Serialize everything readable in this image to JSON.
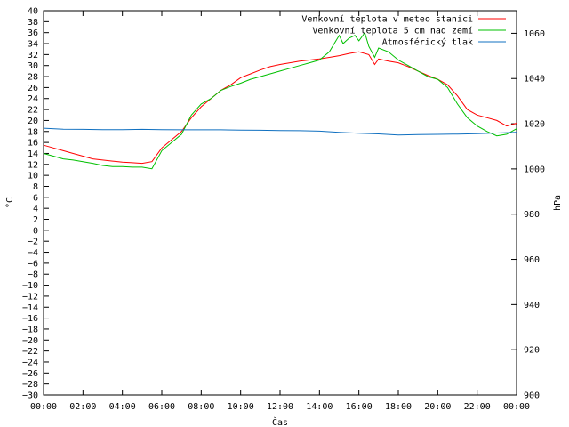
{
  "chart_data": {
    "type": "line",
    "xlabel": "Čas",
    "ylabel": "°C",
    "y2label": "hPa",
    "x_ticks": [
      "00:00",
      "02:00",
      "04:00",
      "06:00",
      "08:00",
      "10:00",
      "12:00",
      "14:00",
      "16:00",
      "18:00",
      "20:00",
      "22:00",
      "00:00"
    ],
    "x_range_hours": [
      0,
      24
    ],
    "ylim": [
      -30,
      40
    ],
    "y_ticks": [
      40,
      38,
      36,
      34,
      32,
      30,
      28,
      26,
      24,
      22,
      20,
      18,
      16,
      14,
      12,
      10,
      8,
      6,
      4,
      2,
      0,
      -2,
      -4,
      -6,
      -8,
      -10,
      -12,
      -14,
      -16,
      -18,
      -20,
      -22,
      -24,
      -26,
      -28,
      -30
    ],
    "y2lim": [
      900,
      1070
    ],
    "y2_ticks": [
      1060,
      1040,
      1020,
      1000,
      980,
      960,
      940,
      920,
      900
    ],
    "grid": false,
    "legend_position": "top-right",
    "series": [
      {
        "name": "Venkovní teplota v meteo stanici",
        "color": "#ff0000",
        "axis": "left",
        "x": [
          0,
          0.5,
          1,
          1.5,
          2,
          2.5,
          3,
          3.5,
          4,
          4.5,
          5,
          5.5,
          6,
          6.5,
          7,
          7.5,
          8,
          8.5,
          9,
          9.5,
          10,
          10.5,
          11,
          11.5,
          12,
          12.5,
          13,
          13.5,
          14,
          14.5,
          15,
          15.5,
          16,
          16.5,
          16.8,
          17,
          17.5,
          18,
          18.5,
          19,
          19.5,
          20,
          20.5,
          21,
          21.5,
          22,
          22.5,
          23,
          23.5,
          24
        ],
        "values": [
          15.5,
          15,
          14.5,
          14,
          13.5,
          13,
          12.8,
          12.6,
          12.4,
          12.3,
          12.2,
          12.5,
          15,
          16.5,
          18,
          20.5,
          22.5,
          24,
          25.5,
          26.5,
          27.8,
          28.5,
          29.2,
          29.8,
          30.2,
          30.5,
          30.8,
          31,
          31.2,
          31.5,
          31.8,
          32.2,
          32.5,
          32,
          30.2,
          31.2,
          30.8,
          30.5,
          29.8,
          29,
          28.2,
          27.5,
          26.5,
          24.5,
          22,
          21,
          20.5,
          20,
          19,
          19.5
        ]
      },
      {
        "name": "Venkovní teplota 5 cm nad zemí",
        "color": "#00c000",
        "axis": "left",
        "x": [
          0,
          0.5,
          1,
          1.5,
          2,
          2.5,
          3,
          3.5,
          4,
          4.5,
          5,
          5.5,
          6,
          6.5,
          7,
          7.5,
          8,
          8.5,
          9,
          9.5,
          10,
          10.5,
          11,
          11.5,
          12,
          12.5,
          13,
          13.5,
          14,
          14.5,
          15,
          15.2,
          15.5,
          15.8,
          16,
          16.3,
          16.5,
          16.8,
          17,
          17.5,
          18,
          18.5,
          19,
          19.5,
          20,
          20.5,
          21,
          21.5,
          22,
          22.5,
          23,
          23.5,
          24
        ],
        "values": [
          14,
          13.5,
          13,
          12.8,
          12.5,
          12.2,
          11.8,
          11.6,
          11.6,
          11.5,
          11.5,
          11.2,
          14.5,
          16,
          17.5,
          21,
          23,
          24,
          25.5,
          26.2,
          26.8,
          27.5,
          28,
          28.5,
          29,
          29.5,
          30,
          30.5,
          31,
          32.5,
          35.5,
          34,
          35,
          35.5,
          34.5,
          36,
          33.5,
          31.5,
          33.2,
          32.5,
          31,
          30,
          29,
          28,
          27.5,
          26,
          23,
          20.5,
          19,
          18,
          17.2,
          17.5,
          18.5
        ]
      },
      {
        "name": "Atmosférický tlak",
        "color": "#1070c0",
        "axis": "right",
        "x": [
          0,
          1,
          2,
          3,
          4,
          5,
          6,
          7,
          8,
          9,
          10,
          11,
          12,
          13,
          14,
          15,
          16,
          17,
          18,
          19,
          20,
          21,
          22,
          23,
          24
        ],
        "values": [
          1018,
          1017.6,
          1017.5,
          1017.4,
          1017.4,
          1017.5,
          1017.4,
          1017.3,
          1017.3,
          1017.3,
          1017.2,
          1017.1,
          1017,
          1016.9,
          1016.7,
          1016.2,
          1015.8,
          1015.5,
          1015,
          1015.2,
          1015.3,
          1015.4,
          1015.6,
          1015.9,
          1016.2
        ]
      }
    ]
  }
}
